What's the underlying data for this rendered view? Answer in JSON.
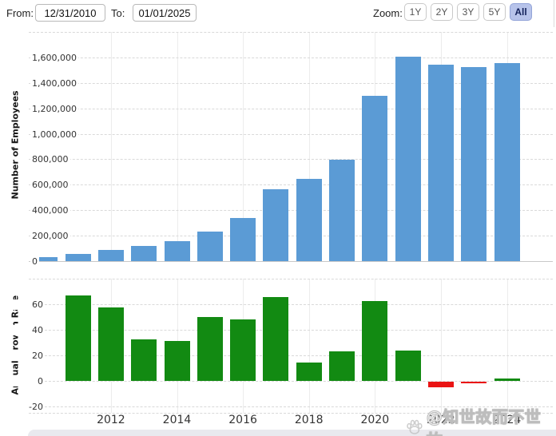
{
  "controls": {
    "from_label": "From:",
    "from_value": "12/31/2010",
    "to_label": "To:",
    "to_value": "01/01/2025",
    "zoom_label": "Zoom:",
    "zoom_buttons": [
      "1Y",
      "2Y",
      "3Y",
      "5Y",
      "All"
    ],
    "zoom_active": "All"
  },
  "chart_data": [
    {
      "type": "bar",
      "title": "",
      "ylabel": "Number of Employees",
      "categories": [
        2010,
        2011,
        2012,
        2013,
        2014,
        2015,
        2016,
        2017,
        2018,
        2019,
        2020,
        2021,
        2022,
        2023,
        2024
      ],
      "values": [
        33700,
        56200,
        88400,
        117300,
        154100,
        230800,
        341400,
        566000,
        647500,
        798000,
        1298000,
        1608000,
        1541000,
        1525000,
        1556000
      ],
      "ylim": [
        0,
        1800000
      ],
      "yticks": [
        0,
        200000,
        400000,
        600000,
        800000,
        1000000,
        1200000,
        1400000,
        1600000
      ],
      "grid": true,
      "bar_color": "#5b9bd5"
    },
    {
      "type": "bar",
      "title": "",
      "ylabel": "Annual Growth Rate",
      "categories": [
        2011,
        2012,
        2013,
        2014,
        2015,
        2016,
        2017,
        2018,
        2019,
        2020,
        2021,
        2022,
        2023,
        2024
      ],
      "values": [
        66.77,
        57.3,
        32.69,
        31.37,
        49.77,
        47.92,
        65.79,
        14.4,
        23.24,
        62.66,
        23.88,
        -4.17,
        -1.04,
        2.03
      ],
      "ylim": [
        -25,
        80
      ],
      "yticks": [
        -20,
        0,
        20,
        40,
        60
      ],
      "grid": true,
      "positive_color": "#128a12",
      "negative_color": "#ea1414"
    }
  ],
  "x_axis_labels": [
    "2012",
    "2014",
    "2016",
    "2018",
    "2020",
    "2022",
    "2024"
  ],
  "watermark": {
    "text": "@知世故而不世故"
  }
}
